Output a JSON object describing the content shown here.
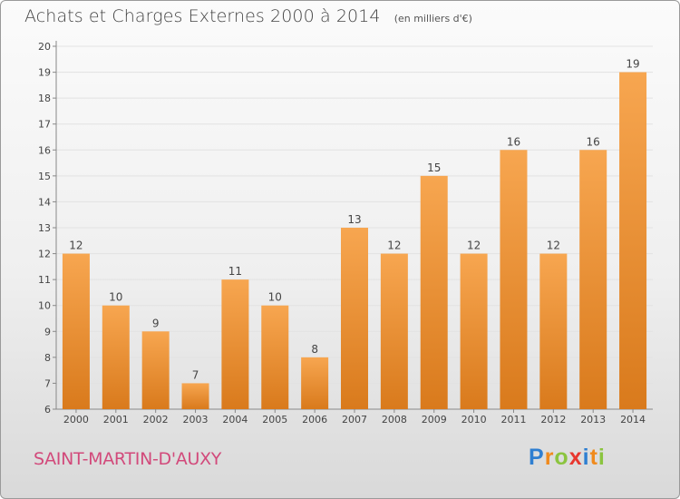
{
  "header": {
    "title": "Achats et Charges Externes 2000 à 2014",
    "subtitle": "(en milliers d'€)"
  },
  "footer": {
    "commune": "SAINT-MARTIN-D'AUXY",
    "logo_letters": [
      "P",
      "r",
      "o",
      "x",
      "i",
      "t",
      "i"
    ],
    "logo_colors": [
      "#2f7fd1",
      "#f08a1c",
      "#8bc43f",
      "#e8372f",
      "#2f7fd1",
      "#f08a1c",
      "#8bc43f"
    ]
  },
  "colors": {
    "bar_top": "#f7a650",
    "bar_bottom": "#d97a1c",
    "commune_text": "#d24a7b"
  },
  "chart_data": {
    "type": "bar",
    "title": "Achats et Charges Externes 2000 à 2014",
    "subtitle": "(en milliers d'€)",
    "categories": [
      "2000",
      "2001",
      "2002",
      "2003",
      "2004",
      "2005",
      "2006",
      "2007",
      "2008",
      "2009",
      "2010",
      "2011",
      "2012",
      "2013",
      "2014"
    ],
    "values": [
      12,
      10,
      9,
      7,
      11,
      10,
      8,
      13,
      12,
      15,
      12,
      16,
      12,
      16,
      19
    ],
    "ylim": [
      6,
      20
    ],
    "yticks": [
      6,
      7,
      8,
      9,
      10,
      11,
      12,
      13,
      14,
      15,
      16,
      17,
      18,
      19,
      20
    ],
    "grid": true
  }
}
